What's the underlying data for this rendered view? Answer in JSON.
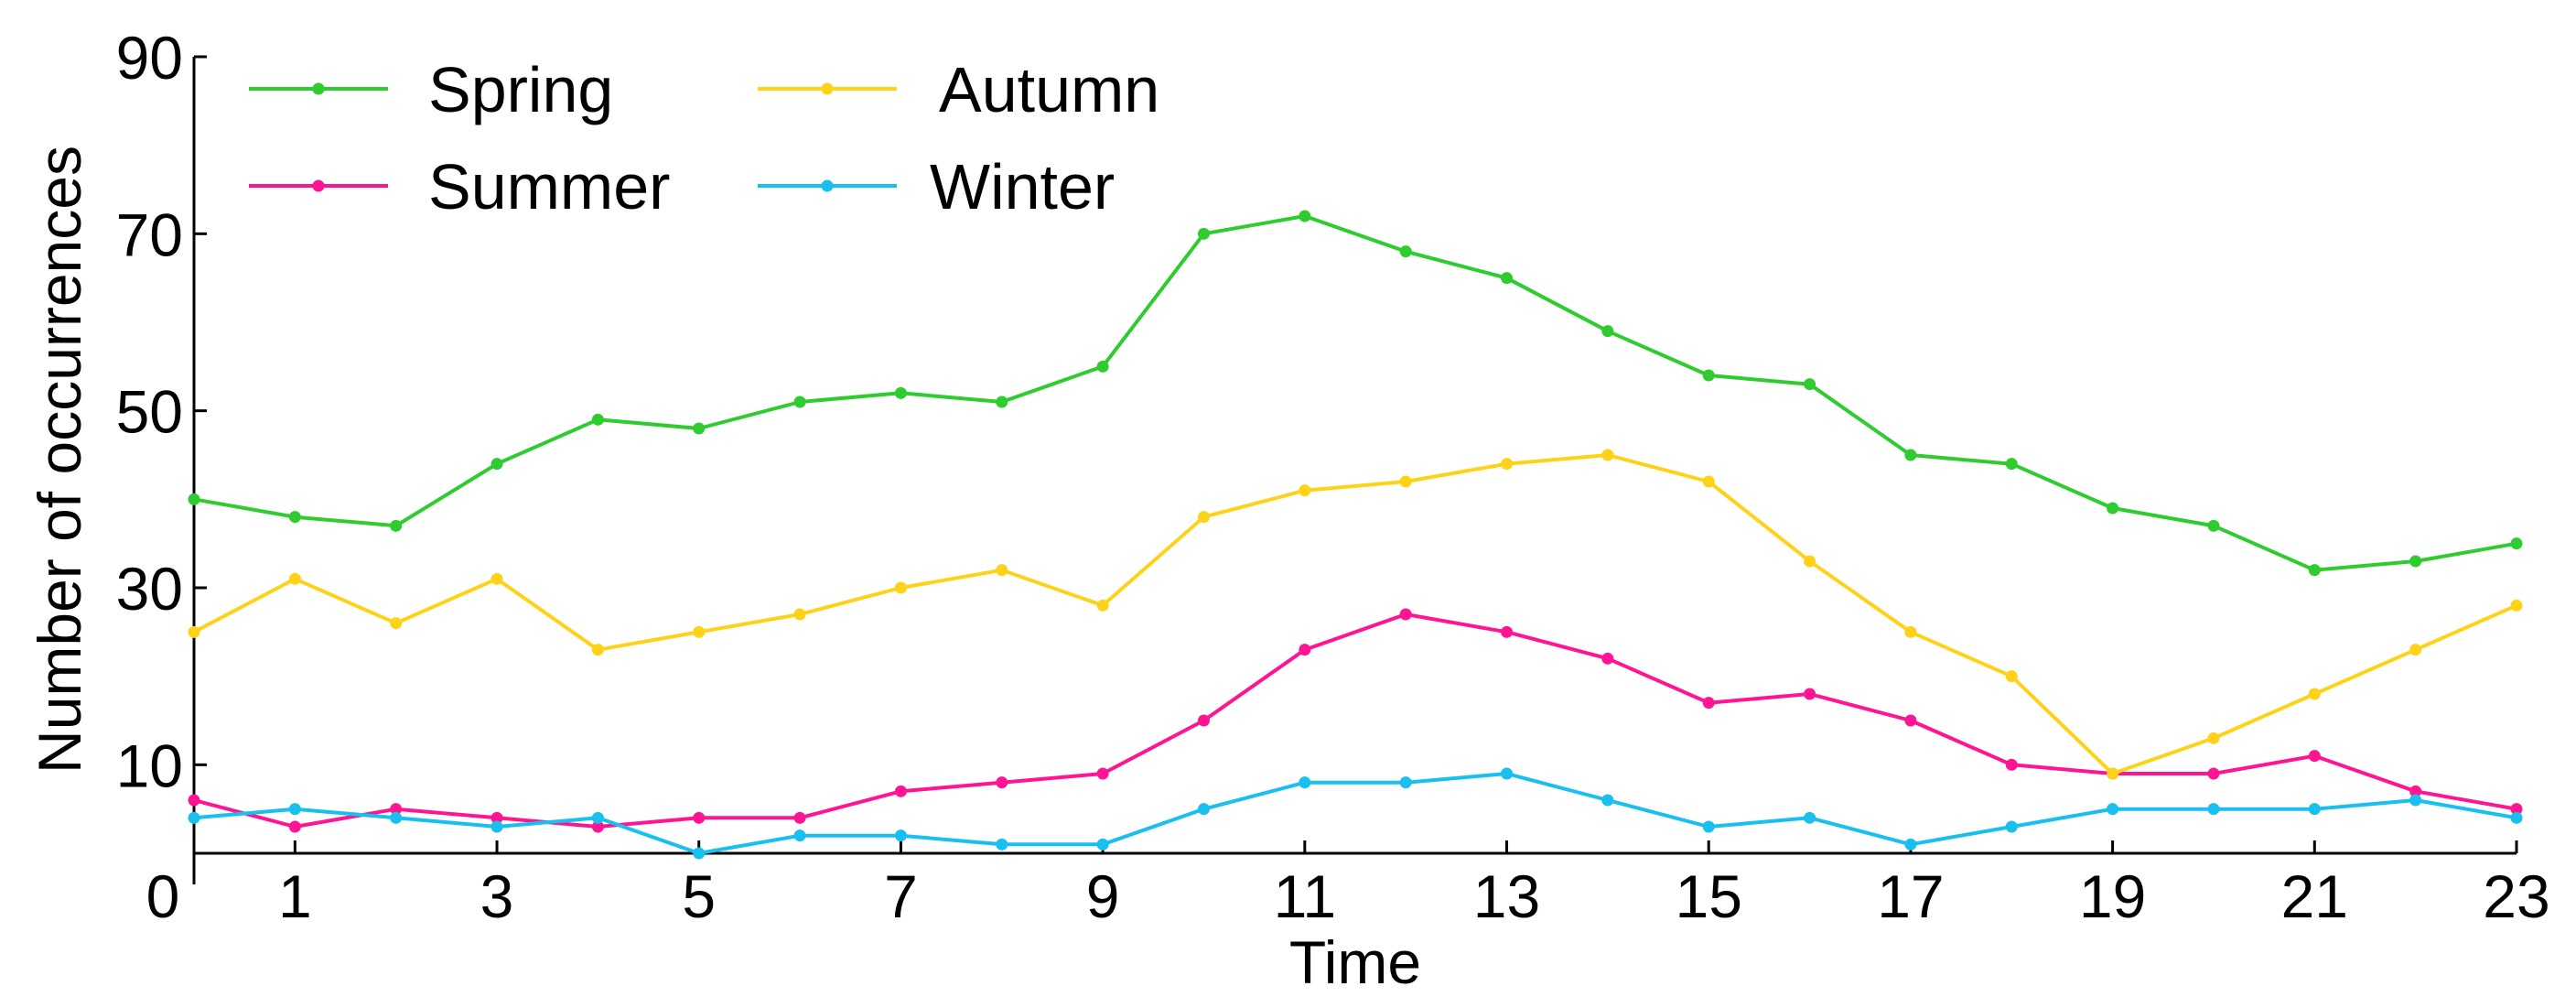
{
  "chart_data": {
    "type": "line",
    "title": "",
    "xlabel": "Time",
    "ylabel": "Number of occurrences",
    "xlim": [
      0,
      23
    ],
    "ylim": [
      0,
      90
    ],
    "xticks": [
      0,
      1,
      3,
      5,
      7,
      9,
      11,
      13,
      15,
      17,
      19,
      21,
      23
    ],
    "yticks": [
      10,
      30,
      50,
      70,
      90
    ],
    "x": [
      0,
      1,
      2,
      3,
      4,
      5,
      6,
      7,
      8,
      9,
      10,
      11,
      12,
      13,
      14,
      15,
      16,
      17,
      18,
      19,
      20,
      21,
      22,
      23
    ],
    "grid": false,
    "legend": "top-left",
    "series": [
      {
        "name": "Spring",
        "color": "#2ecc2e",
        "values": [
          40,
          38,
          37,
          44,
          49,
          48,
          51,
          52,
          51,
          55,
          70,
          72,
          68,
          65,
          59,
          54,
          53,
          45,
          44,
          39,
          37,
          32,
          33,
          35
        ]
      },
      {
        "name": "Summer",
        "color": "#ff1493",
        "values": [
          6,
          3,
          5,
          4,
          3,
          4,
          4,
          7,
          8,
          9,
          15,
          23,
          27,
          25,
          22,
          17,
          18,
          15,
          10,
          9,
          9,
          11,
          7,
          5
        ]
      },
      {
        "name": "Autumn",
        "color": "#ffd21a",
        "values": [
          25,
          31,
          26,
          31,
          23,
          25,
          27,
          30,
          32,
          28,
          38,
          41,
          42,
          44,
          45,
          42,
          33,
          25,
          20,
          9,
          13,
          18,
          23,
          28
        ]
      },
      {
        "name": "Winter",
        "color": "#19bfef",
        "values": [
          4,
          5,
          4,
          3,
          4,
          0,
          2,
          2,
          1,
          1,
          5,
          8,
          8,
          9,
          6,
          3,
          4,
          1,
          3,
          5,
          5,
          5,
          6,
          4
        ]
      }
    ]
  }
}
